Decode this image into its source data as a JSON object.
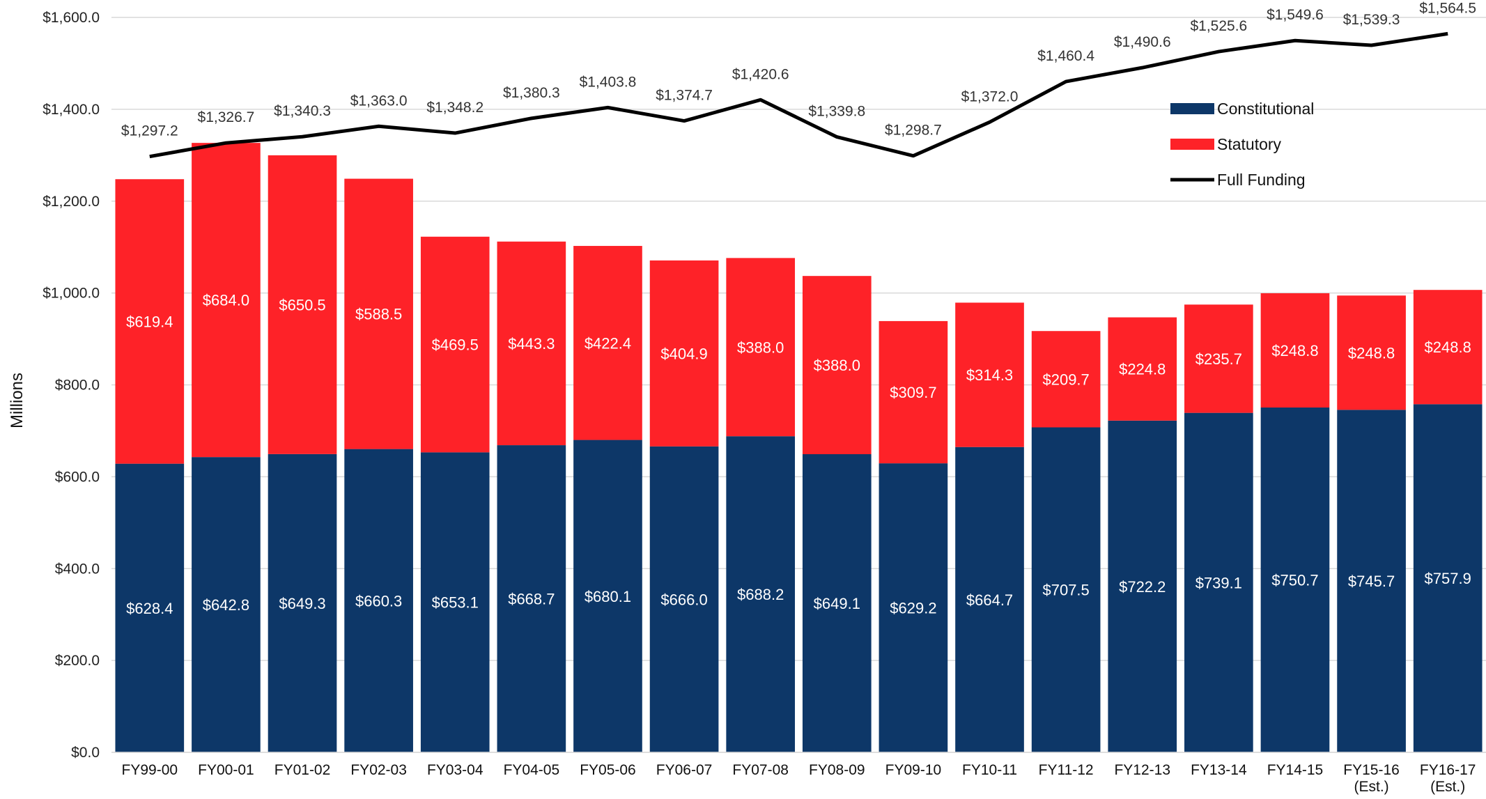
{
  "chart_data": {
    "type": "bar",
    "stacked": true,
    "ylabel": "Millions",
    "ylim": [
      0,
      1600
    ],
    "yticks": [
      "$0.0",
      "$200.0",
      "$400.0",
      "$600.0",
      "$800.0",
      "$1,000.0",
      "$1,200.0",
      "$1,400.0",
      "$1,600.0"
    ],
    "ytick_values": [
      0,
      200,
      400,
      600,
      800,
      1000,
      1200,
      1400,
      1600
    ],
    "grid": true,
    "legend_position": "top-right",
    "categories": [
      [
        "FY99-00"
      ],
      [
        "FY00-01"
      ],
      [
        "FY01-02"
      ],
      [
        "FY02-03"
      ],
      [
        "FY03-04"
      ],
      [
        "FY04-05"
      ],
      [
        "FY05-06"
      ],
      [
        "FY06-07"
      ],
      [
        "FY07-08"
      ],
      [
        "FY08-09"
      ],
      [
        "FY09-10"
      ],
      [
        "FY10-11"
      ],
      [
        "FY11-12"
      ],
      [
        "FY12-13"
      ],
      [
        "FY13-14"
      ],
      [
        "FY14-15"
      ],
      [
        "FY15-16",
        "(Est.)"
      ],
      [
        "FY16-17",
        "(Est.)"
      ]
    ],
    "series": [
      {
        "name": "Constitutional",
        "type": "bar",
        "color": "#0d3768",
        "values": [
          628.4,
          642.8,
          649.3,
          660.3,
          653.1,
          668.7,
          680.1,
          666.0,
          688.2,
          649.1,
          629.2,
          664.7,
          707.5,
          722.2,
          739.1,
          750.7,
          745.7,
          757.9
        ],
        "labels": [
          "$628.4",
          "$642.8",
          "$649.3",
          "$660.3",
          "$653.1",
          "$668.7",
          "$680.1",
          "$666.0",
          "$688.2",
          "$649.1",
          "$629.2",
          "$664.7",
          "$707.5",
          "$722.2",
          "$739.1",
          "$750.7",
          "$745.7",
          "$757.9"
        ]
      },
      {
        "name": "Statutory",
        "type": "bar",
        "color": "#fe2228",
        "values": [
          619.4,
          684.0,
          650.5,
          588.5,
          469.5,
          443.3,
          422.4,
          404.9,
          388.0,
          388.0,
          309.7,
          314.3,
          209.7,
          224.8,
          235.7,
          248.8,
          248.8,
          248.8
        ],
        "labels": [
          "$619.4",
          "$684.0",
          "$650.5",
          "$588.5",
          "$469.5",
          "$443.3",
          "$422.4",
          "$404.9",
          "$388.0",
          "$388.0",
          "$309.7",
          "$314.3",
          "$209.7",
          "$224.8",
          "$235.7",
          "$248.8",
          "$248.8",
          "$248.8"
        ]
      },
      {
        "name": "Full Funding",
        "type": "line",
        "color": "#000000",
        "values": [
          1297.2,
          1326.7,
          1340.3,
          1363.0,
          1348.2,
          1380.3,
          1403.8,
          1374.7,
          1420.6,
          1339.8,
          1298.7,
          1372.0,
          1460.4,
          1490.6,
          1525.6,
          1549.6,
          1539.3,
          1564.5
        ],
        "labels": [
          "$1,297.2",
          "$1,326.7",
          "$1,340.3",
          "$1,363.0",
          "$1,348.2",
          "$1,380.3",
          "$1,403.8",
          "$1,374.7",
          "$1,420.6",
          "$1,339.8",
          "$1,298.7",
          "$1,372.0",
          "$1,460.4",
          "$1,490.6",
          "$1,525.6",
          "$1,549.6",
          "$1,539.3",
          "$1,564.5"
        ]
      }
    ]
  }
}
